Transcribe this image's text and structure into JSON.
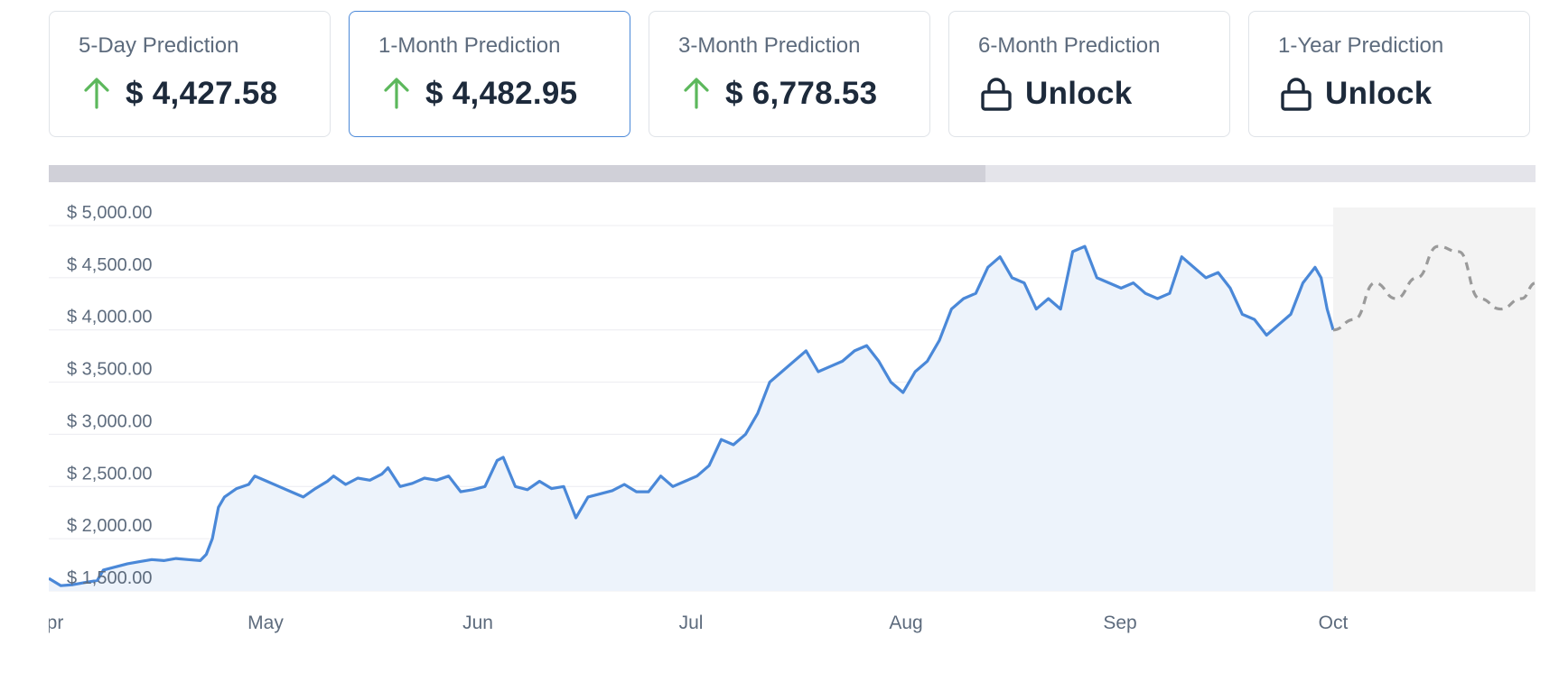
{
  "cards": [
    {
      "title": "5-Day Prediction",
      "value": "$ 4,427.58",
      "icon": "arrow-up-icon",
      "active": false
    },
    {
      "title": "1-Month Prediction",
      "value": "$ 4,482.95",
      "icon": "arrow-up-icon",
      "active": true
    },
    {
      "title": "3-Month Prediction",
      "value": "$ 6,778.53",
      "icon": "arrow-up-icon",
      "active": false
    },
    {
      "title": "6-Month Prediction",
      "value": "Unlock",
      "icon": "lock-icon",
      "active": false
    },
    {
      "title": "1-Year Prediction",
      "value": "Unlock",
      "icon": "lock-icon",
      "active": false
    }
  ],
  "range_selector": {
    "selected_fraction": 0.63
  },
  "colors": {
    "arrow_up": "#5cb85c",
    "lock": "#1d2a3b",
    "line": "#4a88d8",
    "area_fill": "#edf3fb",
    "forecast_line": "#9a9a9a",
    "forecast_area": "#f3f3f3",
    "active_border": "#4a88d8"
  },
  "chart_data": {
    "type": "line",
    "title": "",
    "xlabel": "",
    "ylabel": "",
    "ylim": [
      1500,
      5000
    ],
    "y_ticks": [
      {
        "value": 5000,
        "label": "$ 5,000.00"
      },
      {
        "value": 4500,
        "label": "$ 4,500.00"
      },
      {
        "value": 4000,
        "label": "$ 4,000.00"
      },
      {
        "value": 3500,
        "label": "$ 3,500.00"
      },
      {
        "value": 3000,
        "label": "$ 3,000.00"
      },
      {
        "value": 2500,
        "label": "$ 2,500.00"
      },
      {
        "value": 2000,
        "label": "$ 2,000.00"
      },
      {
        "value": 1500,
        "label": "$ 1,500.00"
      }
    ],
    "x_ticks": [
      {
        "date": "2023-04-01",
        "label": "Apr"
      },
      {
        "date": "2023-05-01",
        "label": "May"
      },
      {
        "date": "2023-06-01",
        "label": "Jun"
      },
      {
        "date": "2023-07-01",
        "label": "Jul"
      },
      {
        "date": "2023-08-01",
        "label": "Aug"
      },
      {
        "date": "2023-09-01",
        "label": "Sep"
      },
      {
        "date": "2023-10-01",
        "label": "Oct"
      }
    ],
    "xlim": [
      "2023-04-01",
      "2023-10-30"
    ],
    "grid": true,
    "series": [
      {
        "kind": "actual",
        "points": [
          [
            "2023-04-01",
            1620
          ],
          [
            "2023-04-03",
            1550
          ],
          [
            "2023-04-05",
            1560
          ],
          [
            "2023-04-07",
            1580
          ],
          [
            "2023-04-09",
            1600
          ],
          [
            "2023-04-10",
            1700
          ],
          [
            "2023-04-12",
            1730
          ],
          [
            "2023-04-14",
            1760
          ],
          [
            "2023-04-16",
            1780
          ],
          [
            "2023-04-18",
            1800
          ],
          [
            "2023-04-20",
            1790
          ],
          [
            "2023-04-22",
            1810
          ],
          [
            "2023-04-24",
            1800
          ],
          [
            "2023-04-26",
            1790
          ],
          [
            "2023-04-27",
            1850
          ],
          [
            "2023-04-28",
            2000
          ],
          [
            "2023-04-29",
            2300
          ],
          [
            "2023-04-30",
            2400
          ],
          [
            "2023-05-02",
            2480
          ],
          [
            "2023-05-04",
            2520
          ],
          [
            "2023-05-05",
            2600
          ],
          [
            "2023-05-07",
            2550
          ],
          [
            "2023-05-09",
            2500
          ],
          [
            "2023-05-11",
            2450
          ],
          [
            "2023-05-13",
            2400
          ],
          [
            "2023-05-15",
            2480
          ],
          [
            "2023-05-17",
            2550
          ],
          [
            "2023-05-18",
            2600
          ],
          [
            "2023-05-20",
            2520
          ],
          [
            "2023-05-22",
            2580
          ],
          [
            "2023-05-24",
            2560
          ],
          [
            "2023-05-26",
            2620
          ],
          [
            "2023-05-27",
            2680
          ],
          [
            "2023-05-29",
            2500
          ],
          [
            "2023-05-31",
            2530
          ],
          [
            "2023-06-02",
            2580
          ],
          [
            "2023-06-04",
            2560
          ],
          [
            "2023-06-06",
            2600
          ],
          [
            "2023-06-08",
            2450
          ],
          [
            "2023-06-10",
            2470
          ],
          [
            "2023-06-12",
            2500
          ],
          [
            "2023-06-14",
            2750
          ],
          [
            "2023-06-15",
            2780
          ],
          [
            "2023-06-17",
            2500
          ],
          [
            "2023-06-19",
            2470
          ],
          [
            "2023-06-21",
            2550
          ],
          [
            "2023-06-23",
            2480
          ],
          [
            "2023-06-25",
            2500
          ],
          [
            "2023-06-27",
            2200
          ],
          [
            "2023-06-29",
            2400
          ],
          [
            "2023-07-01",
            2430
          ],
          [
            "2023-07-03",
            2460
          ],
          [
            "2023-07-05",
            2520
          ],
          [
            "2023-07-07",
            2450
          ],
          [
            "2023-07-09",
            2450
          ],
          [
            "2023-07-11",
            2600
          ],
          [
            "2023-07-13",
            2500
          ],
          [
            "2023-07-15",
            2550
          ],
          [
            "2023-07-17",
            2600
          ],
          [
            "2023-07-19",
            2700
          ],
          [
            "2023-07-21",
            2950
          ],
          [
            "2023-07-23",
            2900
          ],
          [
            "2023-07-25",
            3000
          ],
          [
            "2023-07-27",
            3200
          ],
          [
            "2023-07-29",
            3500
          ],
          [
            "2023-07-31",
            3600
          ],
          [
            "2023-08-02",
            3700
          ],
          [
            "2023-08-04",
            3800
          ],
          [
            "2023-08-06",
            3600
          ],
          [
            "2023-08-08",
            3650
          ],
          [
            "2023-08-10",
            3700
          ],
          [
            "2023-08-12",
            3800
          ],
          [
            "2023-08-14",
            3850
          ],
          [
            "2023-08-16",
            3700
          ],
          [
            "2023-08-18",
            3500
          ],
          [
            "2023-08-20",
            3400
          ],
          [
            "2023-08-22",
            3600
          ],
          [
            "2023-08-24",
            3700
          ],
          [
            "2023-08-26",
            3900
          ],
          [
            "2023-08-28",
            4200
          ],
          [
            "2023-08-30",
            4300
          ],
          [
            "2023-09-01",
            4350
          ],
          [
            "2023-09-03",
            4600
          ],
          [
            "2023-09-05",
            4700
          ],
          [
            "2023-09-07",
            4500
          ],
          [
            "2023-09-09",
            4450
          ],
          [
            "2023-09-11",
            4200
          ],
          [
            "2023-09-13",
            4300
          ],
          [
            "2023-09-15",
            4200
          ],
          [
            "2023-09-17",
            4750
          ],
          [
            "2023-09-19",
            4800
          ],
          [
            "2023-09-21",
            4500
          ],
          [
            "2023-09-23",
            4450
          ],
          [
            "2023-09-25",
            4400
          ],
          [
            "2023-09-27",
            4450
          ],
          [
            "2023-09-29",
            4350
          ],
          [
            "2023-10-01",
            4300
          ],
          [
            "2023-10-03",
            4350
          ],
          [
            "2023-10-05",
            4700
          ],
          [
            "2023-10-07",
            4600
          ],
          [
            "2023-10-09",
            4500
          ],
          [
            "2023-10-11",
            4550
          ],
          [
            "2023-10-13",
            4400
          ],
          [
            "2023-10-15",
            4150
          ],
          [
            "2023-10-17",
            4100
          ],
          [
            "2023-10-19",
            3950
          ],
          [
            "2023-10-21",
            4050
          ],
          [
            "2023-10-23",
            4150
          ],
          [
            "2023-10-25",
            4450
          ],
          [
            "2023-10-27",
            4600
          ],
          [
            "2023-10-28",
            4500
          ],
          [
            "2023-10-29",
            4200
          ],
          [
            "2023-10-30",
            4000
          ]
        ]
      },
      {
        "kind": "forecast",
        "points": [
          [
            "2023-10-01",
            4000
          ],
          [
            "2023-10-04",
            4100
          ],
          [
            "2023-10-07",
            4450
          ],
          [
            "2023-10-10",
            4300
          ],
          [
            "2023-10-13",
            4500
          ],
          [
            "2023-10-16",
            4800
          ],
          [
            "2023-10-19",
            4750
          ],
          [
            "2023-10-22",
            4300
          ],
          [
            "2023-10-25",
            4200
          ],
          [
            "2023-10-28",
            4300
          ],
          [
            "2023-10-30",
            4450
          ]
        ]
      }
    ]
  }
}
